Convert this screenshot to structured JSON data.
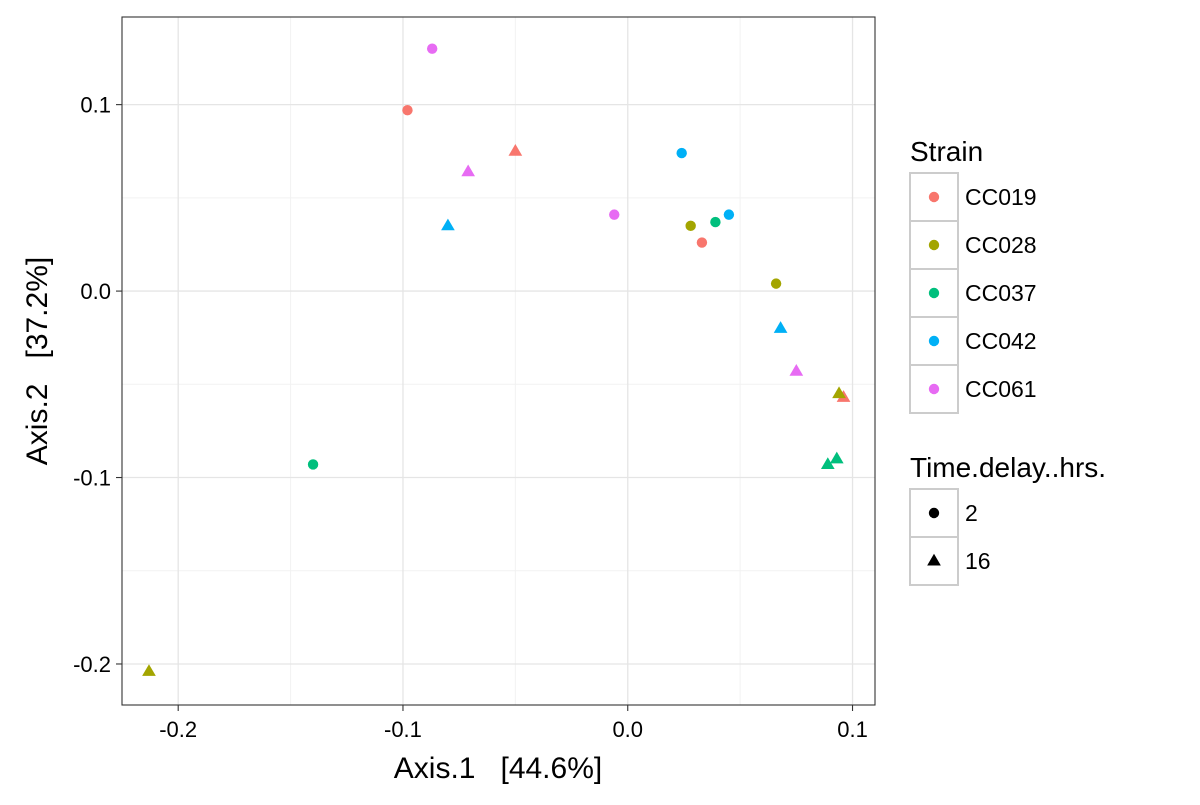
{
  "chart_data": {
    "type": "scatter",
    "xlabel": "Axis.1   [44.6%]",
    "ylabel": "Axis.2   [37.2%]",
    "xlim": [
      -0.225,
      0.11
    ],
    "ylim": [
      -0.222,
      0.147
    ],
    "x_ticks": [
      {
        "value": -0.2,
        "label": "-0.2"
      },
      {
        "value": -0.1,
        "label": "-0.1"
      },
      {
        "value": 0.0,
        "label": "0.0"
      },
      {
        "value": 0.1,
        "label": "0.1"
      }
    ],
    "y_ticks": [
      {
        "value": 0.1,
        "label": "0.1"
      },
      {
        "value": 0.0,
        "label": "0.0"
      },
      {
        "value": -0.1,
        "label": "-0.1"
      },
      {
        "value": -0.2,
        "label": "-0.2"
      }
    ],
    "grid": true,
    "legend_placement": "right",
    "legends": {
      "color": {
        "title": "Strain",
        "entries": [
          {
            "label": "CC019",
            "color": "#F8766D"
          },
          {
            "label": "CC028",
            "color": "#A3A500"
          },
          {
            "label": "CC037",
            "color": "#00BF7D"
          },
          {
            "label": "CC042",
            "color": "#00B0F6"
          },
          {
            "label": "CC061",
            "color": "#E76BF3"
          }
        ]
      },
      "shape": {
        "title": "Time.delay..hrs.",
        "entries": [
          {
            "label": "2",
            "shape": "circle"
          },
          {
            "label": "16",
            "shape": "triangle"
          }
        ]
      }
    },
    "points": [
      {
        "strain": "CC019",
        "time": "2",
        "x": -0.098,
        "y": 0.097
      },
      {
        "strain": "CC019",
        "time": "16",
        "x": -0.05,
        "y": 0.075
      },
      {
        "strain": "CC019",
        "time": "2",
        "x": 0.033,
        "y": 0.026
      },
      {
        "strain": "CC019",
        "time": "16",
        "x": 0.096,
        "y": -0.057
      },
      {
        "strain": "CC028",
        "time": "2",
        "x": 0.028,
        "y": 0.035
      },
      {
        "strain": "CC028",
        "time": "2",
        "x": 0.066,
        "y": 0.004
      },
      {
        "strain": "CC028",
        "time": "16",
        "x": 0.094,
        "y": -0.055
      },
      {
        "strain": "CC028",
        "time": "16",
        "x": -0.213,
        "y": -0.204
      },
      {
        "strain": "CC037",
        "time": "2",
        "x": 0.039,
        "y": 0.037
      },
      {
        "strain": "CC037",
        "time": "2",
        "x": -0.14,
        "y": -0.093
      },
      {
        "strain": "CC037",
        "time": "16",
        "x": 0.089,
        "y": -0.093
      },
      {
        "strain": "CC037",
        "time": "16",
        "x": 0.093,
        "y": -0.09
      },
      {
        "strain": "CC042",
        "time": "2",
        "x": 0.024,
        "y": 0.074
      },
      {
        "strain": "CC042",
        "time": "2",
        "x": 0.045,
        "y": 0.041
      },
      {
        "strain": "CC042",
        "time": "16",
        "x": -0.08,
        "y": 0.035
      },
      {
        "strain": "CC042",
        "time": "16",
        "x": 0.068,
        "y": -0.02
      },
      {
        "strain": "CC061",
        "time": "2",
        "x": -0.087,
        "y": 0.13
      },
      {
        "strain": "CC061",
        "time": "2",
        "x": -0.006,
        "y": 0.041
      },
      {
        "strain": "CC061",
        "time": "16",
        "x": -0.071,
        "y": 0.064
      },
      {
        "strain": "CC061",
        "time": "16",
        "x": 0.075,
        "y": -0.043
      }
    ]
  }
}
